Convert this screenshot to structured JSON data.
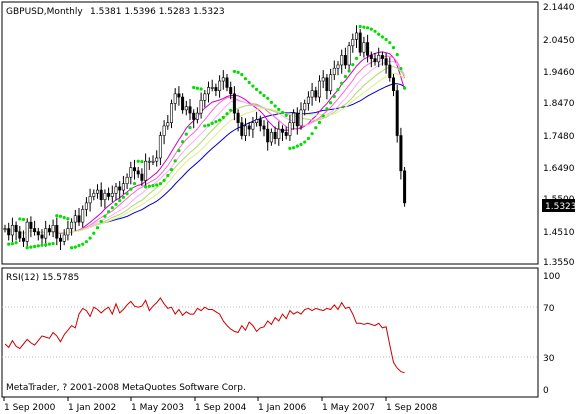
{
  "chart_data": {
    "type": "candlestick",
    "header": {
      "symbol_tf": "GBPUSD,Monthly",
      "ohlc": "1.5381 1.5396 1.5283 1.5323"
    },
    "price_axis": {
      "ylim": [
        1.355,
        2.144
      ],
      "ticks": [
        "2.1440",
        "2.0450",
        "1.9460",
        "1.8470",
        "1.7480",
        "1.6490",
        "1.5500",
        "1.4510",
        "1.3550"
      ],
      "current_price_label": "1.5323",
      "current_price": 1.5323
    },
    "time_axis": {
      "ticks": [
        "1 Sep 2000",
        "1 Jan 2002",
        "1 May 2003",
        "1 Sep 2004",
        "1 Jan 2006",
        "1 May 2007",
        "1 Sep 2008"
      ]
    },
    "price_series": [
      1.45,
      1.43,
      1.46,
      1.44,
      1.42,
      1.41,
      1.47,
      1.45,
      1.44,
      1.43,
      1.42,
      1.45,
      1.44,
      1.46,
      1.42,
      1.41,
      1.43,
      1.45,
      1.47,
      1.49,
      1.47,
      1.51,
      1.53,
      1.55,
      1.56,
      1.57,
      1.54,
      1.56,
      1.55,
      1.56,
      1.58,
      1.57,
      1.59,
      1.61,
      1.64,
      1.63,
      1.62,
      1.6,
      1.66,
      1.66,
      1.66,
      1.67,
      1.74,
      1.77,
      1.78,
      1.84,
      1.87,
      1.86,
      1.82,
      1.83,
      1.81,
      1.79,
      1.81,
      1.85,
      1.87,
      1.89,
      1.89,
      1.88,
      1.91,
      1.92,
      1.89,
      1.87,
      1.81,
      1.78,
      1.74,
      1.77,
      1.76,
      1.78,
      1.79,
      1.77,
      1.76,
      1.72,
      1.75,
      1.73,
      1.76,
      1.75,
      1.74,
      1.78,
      1.81,
      1.77,
      1.82,
      1.84,
      1.86,
      1.88,
      1.86,
      1.91,
      1.92,
      1.88,
      1.93,
      1.95,
      1.96,
      1.99,
      1.96,
      2.02,
      2.04,
      2.06,
      2.0,
      2.03,
      1.99,
      1.98,
      1.97,
      1.99,
      1.98,
      1.96,
      1.92,
      1.88,
      1.74,
      1.63,
      1.53
    ],
    "indicators": {
      "rsi": {
        "label": "RSI(12) 15.5785",
        "ticks": [
          "100",
          "70",
          "30",
          "0"
        ],
        "ylim": [
          0,
          100
        ],
        "levels": [
          70,
          30
        ],
        "values": [
          40,
          37,
          43,
          38,
          36,
          40,
          44,
          41,
          39,
          43,
          47,
          46,
          45,
          50,
          47,
          42,
          48,
          52,
          56,
          54,
          66,
          71,
          69,
          64,
          72,
          70,
          67,
          70,
          72,
          66,
          75,
          67,
          70,
          74,
          77,
          73,
          72,
          73,
          78,
          69,
          73,
          76,
          80,
          75,
          71,
          72,
          66,
          70,
          65,
          68,
          66,
          66,
          71,
          69,
          72,
          70,
          70,
          68,
          66,
          60,
          56,
          53,
          51,
          50,
          56,
          52,
          59,
          56,
          51,
          54,
          55,
          60,
          57,
          63,
          60,
          66,
          62,
          69,
          66,
          68,
          66,
          70,
          71,
          69,
          71,
          70,
          69,
          71,
          70,
          74,
          70,
          76,
          71,
          72,
          66,
          58,
          58,
          57,
          58,
          57,
          56,
          58,
          54,
          55,
          39,
          24,
          19,
          16,
          15
        ]
      }
    },
    "overlay_colors": {
      "sar": "#00dd00",
      "ma_series": [
        "#0000cc",
        "#cc00cc",
        "#ff66cc",
        "#ffaaff",
        "#aadd66",
        "#ddee88"
      ],
      "rsi_line": "#cc0000",
      "candle": "#000000"
    }
  },
  "footer": {
    "copyright": "MetaTrader, ? 2001-2008 MetaQuotes Software Corp."
  }
}
